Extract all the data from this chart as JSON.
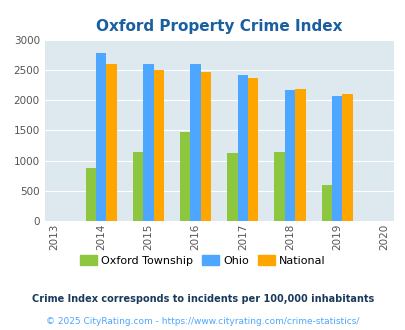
{
  "title": "Oxford Property Crime Index",
  "all_years": [
    2013,
    2014,
    2015,
    2016,
    2017,
    2018,
    2019,
    2020
  ],
  "data_years": [
    2014,
    2015,
    2016,
    2017,
    2018,
    2019
  ],
  "oxford": [
    875,
    1150,
    1480,
    1130,
    1140,
    590
  ],
  "ohio": [
    2780,
    2590,
    2590,
    2420,
    2160,
    2060
  ],
  "national": [
    2600,
    2500,
    2460,
    2360,
    2190,
    2100
  ],
  "color_oxford": "#8dc63f",
  "color_ohio": "#4da6ff",
  "color_national": "#ffa500",
  "bg_color": "#dde9ef",
  "ylim": [
    0,
    3000
  ],
  "yticks": [
    0,
    500,
    1000,
    1500,
    2000,
    2500,
    3000
  ],
  "legend_labels": [
    "Oxford Township",
    "Ohio",
    "National"
  ],
  "footnote1": "Crime Index corresponds to incidents per 100,000 inhabitants",
  "footnote2": "© 2025 CityRating.com - https://www.cityrating.com/crime-statistics/",
  "title_color": "#1a5fa0",
  "footnote1_color": "#1a3a5c",
  "footnote2_color": "#4da6ff"
}
